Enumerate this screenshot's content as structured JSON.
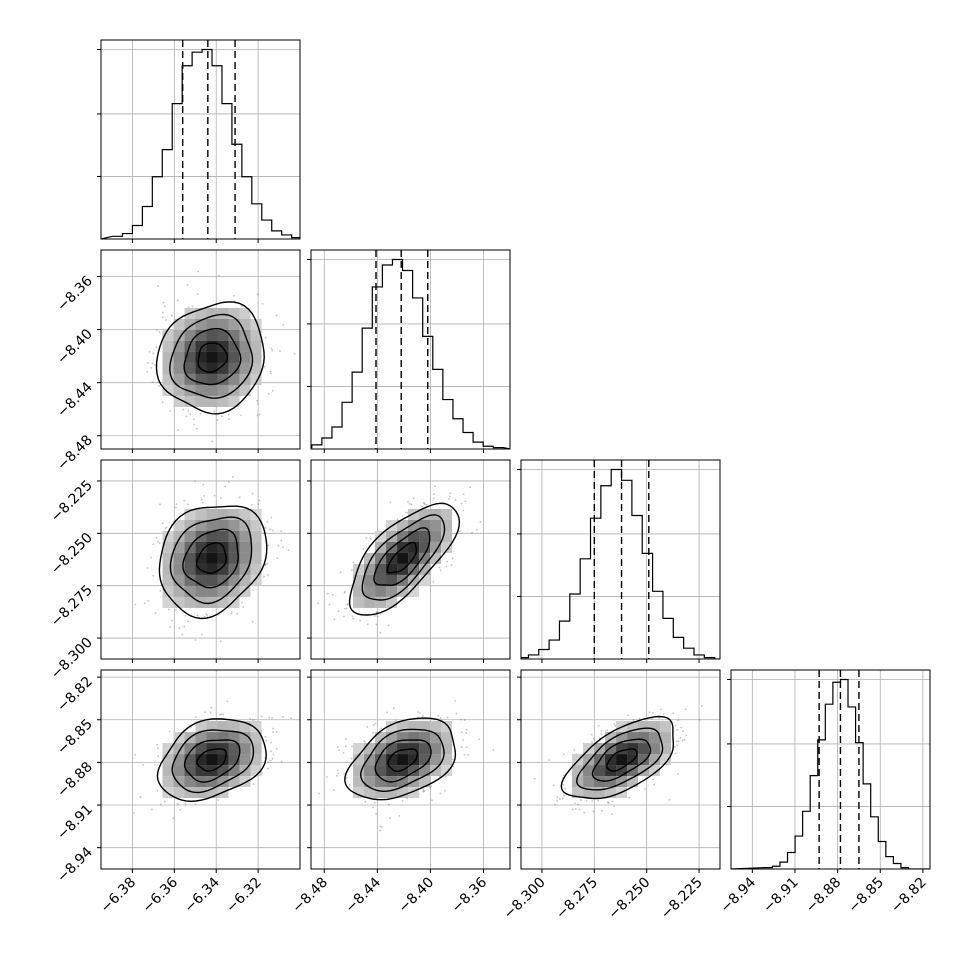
{
  "chart_data": {
    "type": "corner",
    "parameters": [
      {
        "median": -6.342,
        "sigma": 0.0125,
        "lim": [
          -6.395,
          -6.3
        ],
        "ticks": [
          -6.38,
          -6.36,
          -6.34,
          -6.32
        ],
        "tick_labels": [
          "−6.38",
          "−6.36",
          "−6.34",
          "−6.32"
        ],
        "quantiles": [
          -6.356,
          -6.344,
          -6.331
        ]
      },
      {
        "median": -8.421,
        "sigma": 0.02,
        "lim": [
          -8.49,
          -8.34
        ],
        "ticks": [
          -8.48,
          -8.44,
          -8.4,
          -8.36
        ],
        "tick_labels": [
          "−8.48",
          "−8.44",
          "−8.40",
          "−8.36"
        ],
        "quantiles": [
          -8.441,
          -8.422,
          -8.402
        ]
      },
      {
        "median": -8.262,
        "sigma": 0.013,
        "lim": [
          -8.31,
          -8.215
        ],
        "ticks": [
          -8.3,
          -8.275,
          -8.25,
          -8.225
        ],
        "tick_labels": [
          "−8.300",
          "−8.275",
          "−8.250",
          "−8.225"
        ],
        "quantiles": [
          -8.275,
          -8.262,
          -8.249
        ]
      },
      {
        "median": -8.878,
        "sigma": 0.014,
        "lim": [
          -8.955,
          -8.815
        ],
        "ticks": [
          -8.94,
          -8.91,
          -8.88,
          -8.85,
          -8.82
        ],
        "tick_labels": [
          "−8.94",
          "−8.91",
          "−8.88",
          "−8.85",
          "−8.82"
        ],
        "quantiles": [
          -8.893,
          -8.878,
          -8.865
        ]
      }
    ],
    "correlations": [
      [
        0,
        0.1,
        0.2,
        0.3
      ],
      [
        0.1,
        0,
        0.7,
        0.4
      ],
      [
        0.2,
        0.7,
        0,
        0.6
      ],
      [
        0.3,
        0.4,
        0.6,
        0
      ]
    ],
    "histograms": [
      [
        2,
        4,
        10,
        24,
        46,
        66,
        100,
        128,
        138,
        140,
        128,
        100,
        70,
        46,
        26,
        14,
        6,
        3,
        1,
        0
      ],
      [
        1,
        3,
        8,
        16,
        34,
        56,
        88,
        118,
        134,
        138,
        130,
        110,
        82,
        58,
        36,
        22,
        12,
        5,
        2,
        1
      ],
      [
        1,
        3,
        7,
        14,
        28,
        48,
        74,
        104,
        128,
        140,
        132,
        106,
        78,
        50,
        30,
        16,
        8,
        3,
        1,
        0
      ],
      [
        1,
        2,
        5,
        12,
        24,
        42,
        68,
        94,
        120,
        136,
        138,
        118,
        92,
        62,
        38,
        20,
        9,
        4,
        1,
        0
      ]
    ],
    "grid": true
  }
}
